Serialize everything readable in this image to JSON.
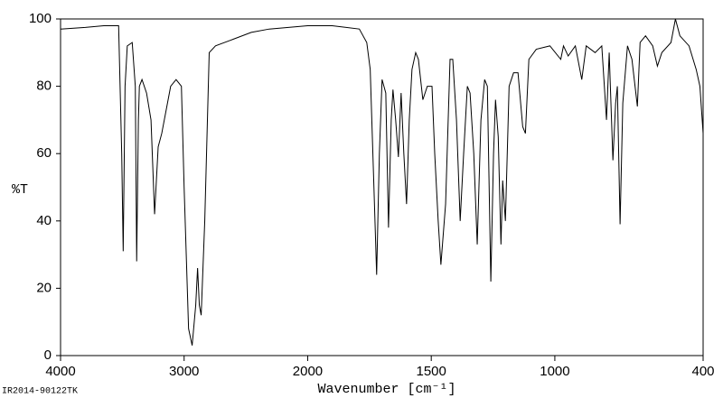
{
  "chart_data": {
    "type": "line",
    "y_label": "%T",
    "x_label": "Wavenumber [cm⁻¹]",
    "footnote": "IR2014-90122TK",
    "xlim": [
      4000,
      400
    ],
    "xbreak": 2000,
    "xbreak_expand": 2,
    "xticks": [
      4000,
      3000,
      2000,
      1500,
      1000,
      400
    ],
    "ylim": [
      0,
      100
    ],
    "yticks": [
      0,
      20,
      40,
      60,
      80,
      100
    ],
    "color": "#000000",
    "x": [
      4000,
      3800,
      3650,
      3530,
      3505,
      3493,
      3478,
      3460,
      3420,
      3395,
      3384,
      3370,
      3362,
      3341,
      3304,
      3268,
      3239,
      3210,
      3181,
      3109,
      3065,
      3022,
      3000,
      2964,
      2935,
      2906,
      2891,
      2877,
      2862,
      2833,
      2797,
      2746,
      2601,
      2457,
      2312,
      2000,
      1901,
      1791,
      1761,
      1747,
      1732,
      1721,
      1710,
      1699,
      1684,
      1673,
      1662,
      1655,
      1644,
      1633,
      1622,
      1611,
      1600,
      1589,
      1578,
      1563,
      1552,
      1534,
      1516,
      1497,
      1486,
      1472,
      1461,
      1442,
      1424,
      1413,
      1398,
      1383,
      1369,
      1354,
      1343,
      1328,
      1314,
      1299,
      1284,
      1273,
      1259,
      1248,
      1240,
      1229,
      1218,
      1211,
      1200,
      1185,
      1167,
      1149,
      1130,
      1119,
      1105,
      1075,
      1020,
      976,
      965,
      946,
      917,
      891,
      873,
      837,
      810,
      791,
      780,
      765,
      754,
      747,
      736,
      725,
      706,
      688,
      666,
      655,
      633,
      604,
      585,
      567,
      530,
      512,
      494,
      457,
      428,
      413,
      400
    ],
    "values": [
      97,
      97.5,
      98,
      98,
      60,
      31,
      80,
      92,
      93,
      80,
      28,
      70,
      80,
      82,
      78,
      70,
      42,
      62,
      66,
      80,
      82,
      80,
      50,
      8,
      3,
      15,
      26,
      15,
      12,
      40,
      90,
      92,
      94,
      96,
      97,
      98,
      98,
      97,
      93,
      85,
      50,
      24,
      60,
      82,
      78,
      38,
      70,
      79,
      70,
      59,
      78,
      60,
      45,
      70,
      85,
      90,
      88,
      76,
      80,
      80,
      60,
      40,
      27,
      45,
      88,
      88,
      70,
      40,
      60,
      80,
      78,
      60,
      33,
      70,
      82,
      80,
      22,
      60,
      76,
      65,
      33,
      52,
      40,
      80,
      84,
      84,
      68,
      66,
      88,
      91,
      92,
      88,
      92,
      89,
      92,
      82,
      92,
      90,
      92,
      70,
      90,
      58,
      75,
      80,
      39,
      75,
      92,
      88,
      74,
      93,
      95,
      92,
      86,
      90,
      93,
      100,
      95,
      92,
      85,
      80,
      66
    ]
  }
}
